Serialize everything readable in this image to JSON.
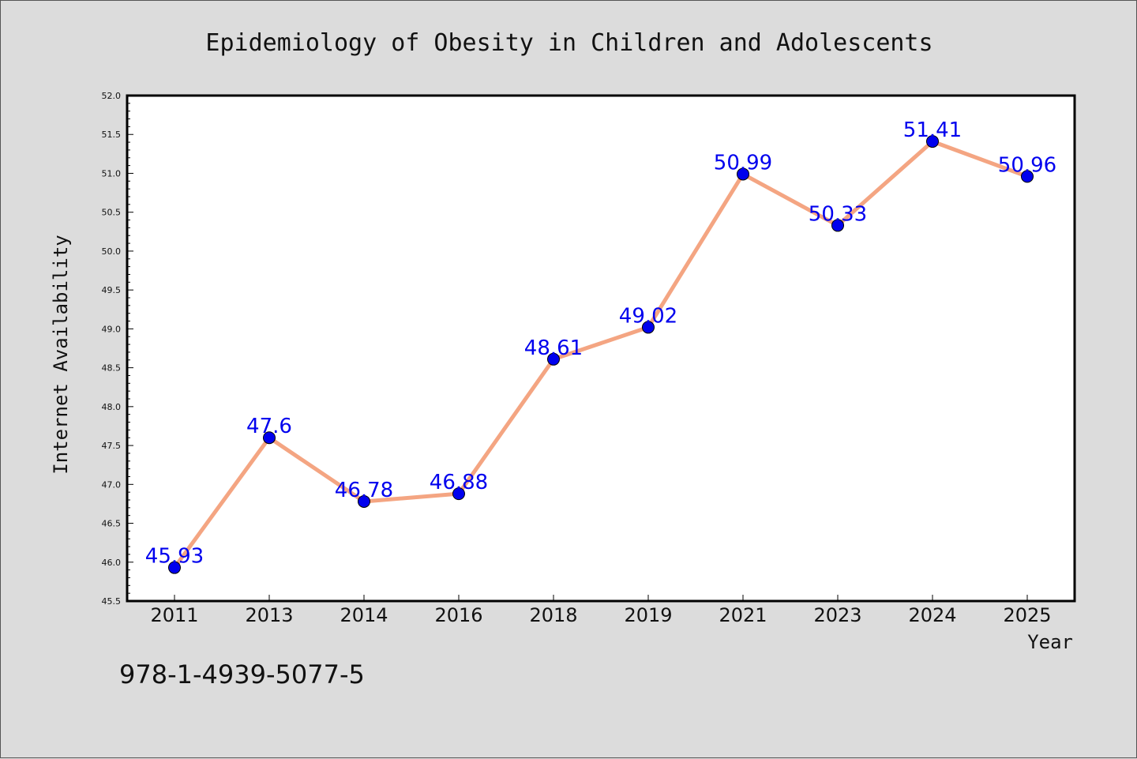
{
  "chart_data": {
    "type": "line",
    "title": "Epidemiology of Obesity in Children and Adolescents",
    "xlabel": "Year",
    "ylabel": "Internet Availability",
    "categories": [
      "2011",
      "2013",
      "2014",
      "2016",
      "2018",
      "2019",
      "2021",
      "2023",
      "2024",
      "2025"
    ],
    "values": [
      45.93,
      47.6,
      46.78,
      46.88,
      48.61,
      49.02,
      50.99,
      50.33,
      51.41,
      50.96
    ],
    "data_labels": [
      "45.93",
      "47.6",
      "46.78",
      "46.88",
      "48.61",
      "49.02",
      "50.99",
      "50.33",
      "51.41",
      "50.96"
    ],
    "ylim": [
      45.5,
      52.0
    ],
    "yticks": [
      "45.5",
      "46.0",
      "46.5",
      "47.0",
      "47.5",
      "48.0",
      "48.5",
      "49.0",
      "49.5",
      "50.0",
      "50.5",
      "51.0",
      "51.5",
      "52.0"
    ],
    "grid": false,
    "line_color": "#f4a582",
    "marker_color": "#0000ee",
    "label_color": "#0000ee"
  },
  "footer": {
    "isbn": "978-1-4939-5077-5"
  }
}
